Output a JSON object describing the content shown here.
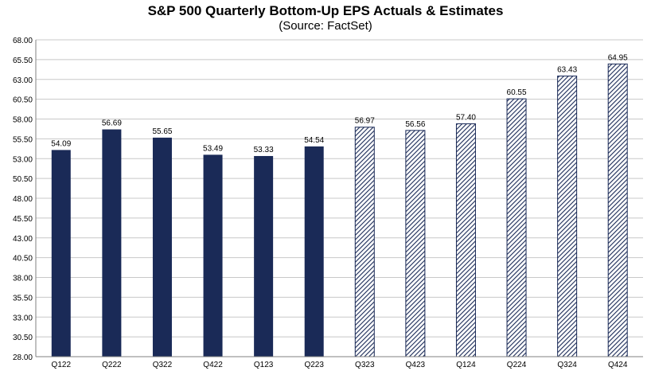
{
  "chart_data": {
    "type": "bar",
    "title": "S&P 500 Quarterly Bottom-Up EPS Actuals & Estimates",
    "subtitle": "(Source: FactSet)",
    "categories": [
      "Q122",
      "Q222",
      "Q322",
      "Q422",
      "Q123",
      "Q223",
      "Q323",
      "Q423",
      "Q124",
      "Q224",
      "Q324",
      "Q424"
    ],
    "values": [
      54.09,
      56.69,
      55.65,
      53.49,
      53.33,
      54.54,
      56.97,
      56.56,
      57.4,
      60.55,
      63.43,
      64.95
    ],
    "value_labels": [
      "54.09",
      "56.69",
      "55.65",
      "53.49",
      "53.33",
      "54.54",
      "56.97",
      "56.56",
      "57.40",
      "60.55",
      "63.43",
      "64.95"
    ],
    "bar_style": [
      "solid",
      "solid",
      "solid",
      "solid",
      "solid",
      "solid",
      "hatched",
      "hatched",
      "hatched",
      "hatched",
      "hatched",
      "hatched"
    ],
    "ylim": [
      28.0,
      68.0
    ],
    "yticks": [
      "28.00",
      "30.50",
      "33.00",
      "35.50",
      "38.00",
      "40.50",
      "43.00",
      "45.50",
      "48.00",
      "50.50",
      "53.00",
      "55.50",
      "58.00",
      "60.50",
      "63.00",
      "65.50",
      "68.00"
    ],
    "grid": true,
    "legend": "none",
    "xlabel": "",
    "ylabel": "",
    "colors": {
      "bar": "#1a2a57",
      "hatch": "#1a2a57",
      "grid": "#c8c8c8",
      "axis": "#808080"
    }
  }
}
